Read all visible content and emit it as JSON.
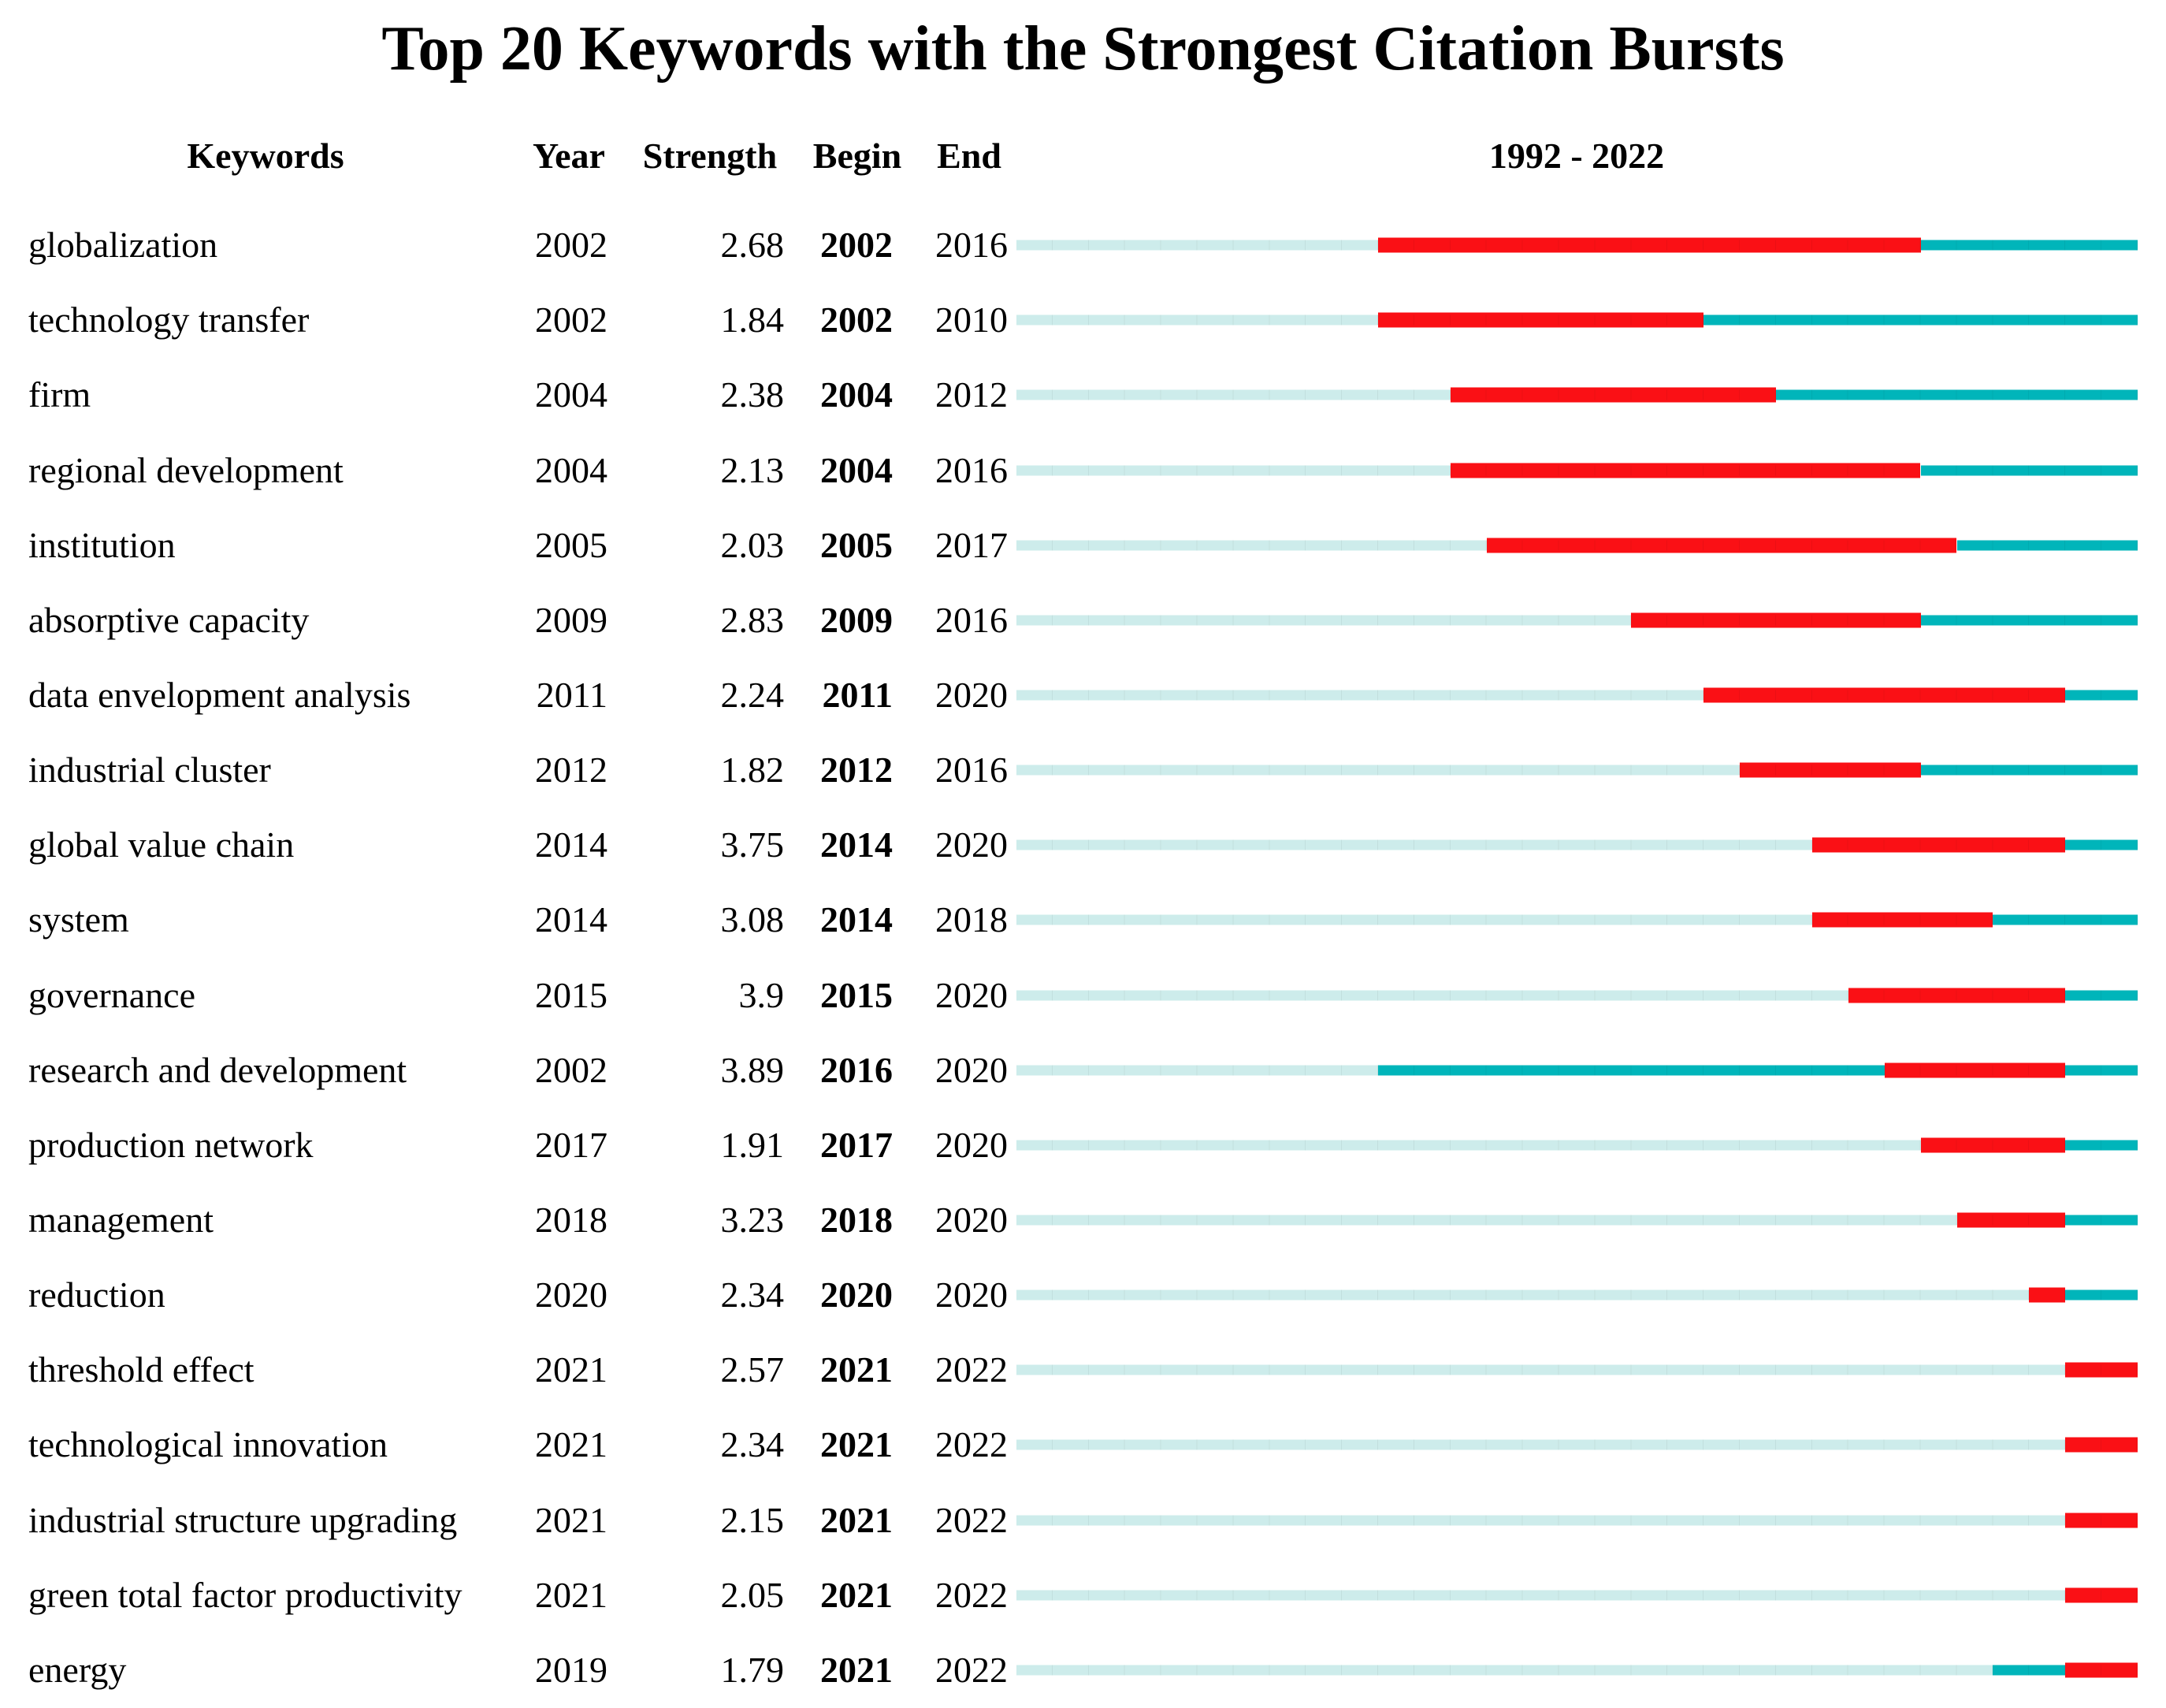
{
  "title": "Top 20 Keywords with the Strongest Citation Bursts",
  "colors": {
    "burst": "#fa1015",
    "active": "#00b5ba",
    "inactive": "#cdeceb",
    "text": "#000000"
  },
  "chart_data": {
    "type": "table",
    "title": "Top 20 Keywords with the Strongest Citation Bursts",
    "columns": [
      "Keywords",
      "Year",
      "Strength",
      "Begin",
      "End"
    ],
    "timeline": {
      "label": "1992 - 2022",
      "start": 1992,
      "end": 2022
    },
    "legend": {
      "burst_color_meaning": "burst period (Begin-End)",
      "active_color_meaning": "keyword present, no burst",
      "inactive_color_meaning": "before keyword appearance"
    },
    "rows": [
      {
        "keyword": "globalization",
        "year": 2002,
        "strength": "2.68",
        "begin": 2002,
        "end": 2016
      },
      {
        "keyword": "technology transfer",
        "year": 2002,
        "strength": "1.84",
        "begin": 2002,
        "end": 2010
      },
      {
        "keyword": "firm",
        "year": 2004,
        "strength": "2.38",
        "begin": 2004,
        "end": 2012
      },
      {
        "keyword": "regional development",
        "year": 2004,
        "strength": "2.13",
        "begin": 2004,
        "end": 2016
      },
      {
        "keyword": "institution",
        "year": 2005,
        "strength": "2.03",
        "begin": 2005,
        "end": 2017
      },
      {
        "keyword": "absorptive capacity",
        "year": 2009,
        "strength": "2.83",
        "begin": 2009,
        "end": 2016
      },
      {
        "keyword": "data envelopment analysis",
        "year": 2011,
        "strength": "2.24",
        "begin": 2011,
        "end": 2020
      },
      {
        "keyword": "industrial cluster",
        "year": 2012,
        "strength": "1.82",
        "begin": 2012,
        "end": 2016
      },
      {
        "keyword": "global value chain",
        "year": 2014,
        "strength": "3.75",
        "begin": 2014,
        "end": 2020
      },
      {
        "keyword": "system",
        "year": 2014,
        "strength": "3.08",
        "begin": 2014,
        "end": 2018
      },
      {
        "keyword": "governance",
        "year": 2015,
        "strength": "3.9",
        "begin": 2015,
        "end": 2020
      },
      {
        "keyword": "research and development",
        "year": 2002,
        "strength": "3.89",
        "begin": 2016,
        "end": 2020
      },
      {
        "keyword": "production network",
        "year": 2017,
        "strength": "1.91",
        "begin": 2017,
        "end": 2020
      },
      {
        "keyword": "management",
        "year": 2018,
        "strength": "3.23",
        "begin": 2018,
        "end": 2020
      },
      {
        "keyword": "reduction",
        "year": 2020,
        "strength": "2.34",
        "begin": 2020,
        "end": 2020
      },
      {
        "keyword": "threshold effect",
        "year": 2021,
        "strength": "2.57",
        "begin": 2021,
        "end": 2022
      },
      {
        "keyword": "technological innovation",
        "year": 2021,
        "strength": "2.34",
        "begin": 2021,
        "end": 2022
      },
      {
        "keyword": "industrial structure upgrading",
        "year": 2021,
        "strength": "2.15",
        "begin": 2021,
        "end": 2022
      },
      {
        "keyword": "green total factor productivity",
        "year": 2021,
        "strength": "2.05",
        "begin": 2021,
        "end": 2022
      },
      {
        "keyword": "energy",
        "year": 2019,
        "strength": "1.79",
        "begin": 2021,
        "end": 2022
      }
    ]
  }
}
